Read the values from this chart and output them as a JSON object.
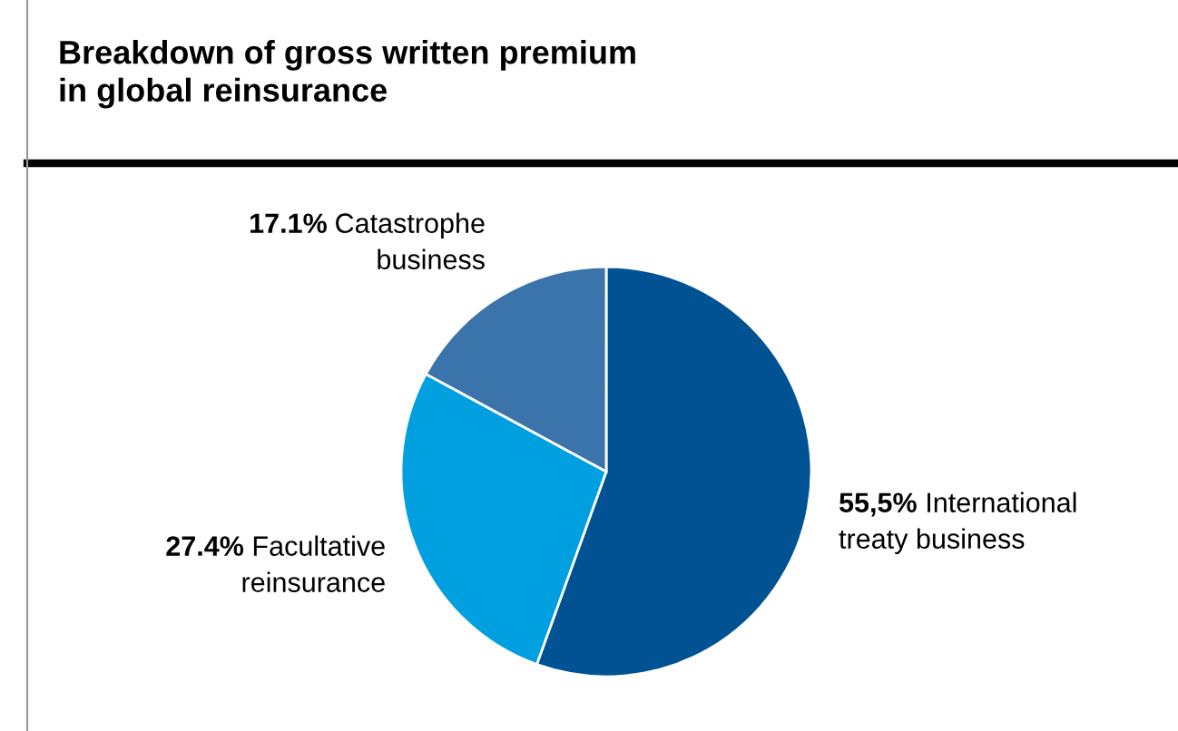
{
  "chart_data": {
    "type": "pie",
    "title": "Breakdown of gross written premium\nin global reinsurance",
    "categories": [
      "International\ntreaty business",
      "Facultative\nreinsurance",
      "Catastrophe\nbusiness"
    ],
    "values": [
      55.5,
      27.4,
      17.1
    ],
    "value_labels": [
      "55,5%",
      "27.4%",
      "17.1%"
    ],
    "colors": [
      "#005293",
      "#009fe0",
      "#3b73ab"
    ]
  }
}
